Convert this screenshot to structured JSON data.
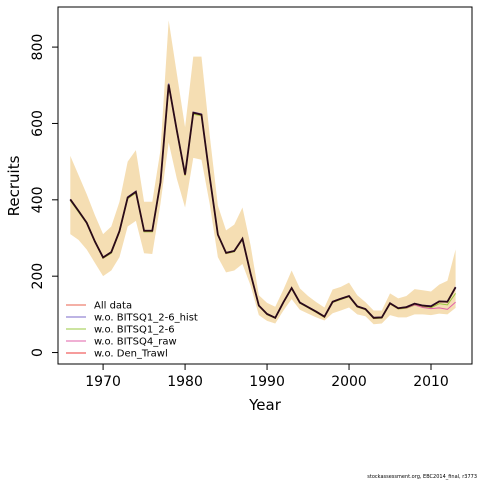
{
  "chart_data": {
    "type": "line",
    "xlabel": "Year",
    "ylabel": "Recruits",
    "xlim": [
      1964.5,
      2015
    ],
    "ylim": [
      -30,
      905
    ],
    "x_ticks": [
      1970,
      1980,
      1990,
      2000,
      2010
    ],
    "x_tick_labels": [
      "1970",
      "1980",
      "1990",
      "2000",
      "2010"
    ],
    "y_ticks": [
      0,
      200,
      400,
      600,
      800
    ],
    "y_tick_labels": [
      "0",
      "200",
      "400",
      "600",
      "800"
    ],
    "legend_position": "bottom-left",
    "x": [
      1966,
      1967,
      1968,
      1969,
      1970,
      1971,
      1972,
      1973,
      1974,
      1975,
      1976,
      1977,
      1978,
      1979,
      1980,
      1981,
      1982,
      1983,
      1984,
      1985,
      1986,
      1987,
      1988,
      1989,
      1990,
      1991,
      1992,
      1993,
      1994,
      1995,
      1996,
      1997,
      1998,
      1999,
      2000,
      2001,
      2002,
      2003,
      2004,
      2005,
      2006,
      2007,
      2008,
      2009,
      2010,
      2011,
      2012,
      2013
    ],
    "band": {
      "color": "#f5deb3",
      "lower": [
        310,
        295,
        270,
        235,
        200,
        215,
        250,
        330,
        345,
        260,
        258,
        390,
        550,
        455,
        380,
        510,
        505,
        390,
        250,
        210,
        215,
        232,
        175,
        98,
        83,
        76,
        110,
        140,
        112,
        102,
        92,
        84,
        103,
        110,
        118,
        100,
        95,
        74,
        76,
        98,
        92,
        92,
        100,
        100,
        98,
        102,
        100,
        117
      ],
      "upper": [
        515,
        465,
        415,
        360,
        310,
        330,
        395,
        500,
        530,
        395,
        395,
        530,
        870,
        730,
        590,
        775,
        775,
        570,
        385,
        320,
        335,
        380,
        280,
        150,
        130,
        120,
        165,
        215,
        168,
        148,
        132,
        118,
        165,
        172,
        183,
        150,
        132,
        110,
        110,
        155,
        142,
        148,
        166,
        163,
        160,
        178,
        188,
        270
      ]
    },
    "series": [
      {
        "name": "All data",
        "color": "#e8604c",
        "values": [
          400,
          370,
          340,
          290,
          248,
          262,
          317,
          405,
          420,
          318,
          318,
          445,
          700,
          580,
          465,
          627,
          622,
          460,
          308,
          260,
          265,
          297,
          205,
          123,
          100,
          91,
          132,
          168,
          130,
          118,
          106,
          93,
          132,
          140,
          147,
          120,
          113,
          90,
          91,
          128,
          115,
          118,
          127,
          122,
          120,
          133,
          132,
          170
        ]
      },
      {
        "name": "w.o. BITSQ1_2-6_hist",
        "color": "#7b68c8",
        "values": [
          402,
          372,
          341,
          292,
          250,
          264,
          320,
          408,
          423,
          320,
          320,
          448,
          705,
          583,
          468,
          630,
          625,
          462,
          310,
          262,
          267,
          299,
          207,
          124,
          102,
          92,
          133,
          170,
          132,
          120,
          108,
          95,
          134,
          142,
          149,
          122,
          115,
          92,
          93,
          130,
          117,
          120,
          129,
          124,
          123,
          135,
          134,
          172
        ]
      },
      {
        "name": "w.o. BITSQ1_2-6",
        "color": "#9ac840",
        "values": [
          398,
          368,
          338,
          289,
          247,
          260,
          315,
          403,
          418,
          316,
          316,
          443,
          698,
          578,
          463,
          624,
          620,
          458,
          307,
          259,
          264,
          296,
          204,
          122,
          99,
          90,
          131,
          167,
          129,
          117,
          105,
          92,
          131,
          139,
          146,
          119,
          112,
          89,
          90,
          127,
          114,
          116,
          124,
          119,
          117,
          128,
          125,
          155
        ]
      },
      {
        "name": "w.o. BITSQ4_raw",
        "color": "#e060a8",
        "values": [
          401,
          371,
          340,
          291,
          249,
          263,
          318,
          406,
          421,
          319,
          319,
          446,
          702,
          581,
          466,
          628,
          623,
          461,
          309,
          261,
          266,
          298,
          206,
          123,
          101,
          91,
          132,
          169,
          131,
          119,
          107,
          94,
          133,
          141,
          148,
          121,
          114,
          91,
          92,
          129,
          116,
          117,
          125,
          118,
          115,
          117,
          113,
          132
        ]
      },
      {
        "name": "w.o. Den_Trawl",
        "color": "#ee3a3a",
        "values": [
          400,
          370,
          340,
          290,
          248,
          262,
          317,
          405,
          420,
          318,
          318,
          445,
          700,
          580,
          465,
          627,
          622,
          460,
          308,
          260,
          265,
          297,
          205,
          123,
          100,
          91,
          132,
          168,
          130,
          118,
          106,
          93,
          132,
          140,
          147,
          120,
          113,
          90,
          91,
          128,
          115,
          118,
          127,
          122,
          120,
          133,
          132,
          170
        ]
      }
    ],
    "overlay_line": {
      "color": "#2a0a18",
      "values": [
        401,
        371,
        340,
        291,
        249,
        263,
        318,
        406,
        421,
        319,
        319,
        446,
        702,
        581,
        466,
        628,
        623,
        461,
        309,
        261,
        266,
        298,
        206,
        123,
        101,
        91,
        132,
        169,
        131,
        119,
        107,
        94,
        133,
        141,
        148,
        121,
        114,
        91,
        92,
        129,
        116,
        119,
        128,
        123,
        121,
        134,
        133,
        171
      ]
    }
  },
  "footer": "stockassessment.org, EBC2014_final, r3773"
}
